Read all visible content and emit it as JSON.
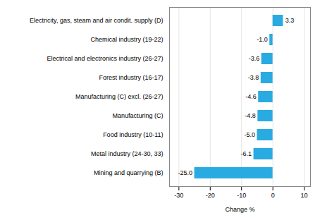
{
  "chart_data": {
    "type": "bar",
    "orientation": "horizontal",
    "categories": [
      "Mining and quarrying (B)",
      "Metal industry (24-30, 33)",
      "Food industry (10-11)",
      "Manufacturing (C)",
      "Manufacturing (C) excl. (26-27)",
      "Forest industry (16-17)",
      "Electrical and electronics industry (26-27)",
      "Chemical industry (19-22)",
      "Electricity, gas, steam and air condit. supply (D)"
    ],
    "values": [
      -25.0,
      -6.1,
      -5.0,
      -4.8,
      -4.6,
      -3.8,
      -3.6,
      -1.0,
      3.3
    ],
    "value_labels": [
      "-25.0",
      "-6.1",
      "-5.0",
      "-4.8",
      "-4.6",
      "-3.8",
      "-3.6",
      "-1.0",
      "3.3"
    ],
    "data_labels": true,
    "color": "#29abe2",
    "xlabel": "Change %",
    "xlim": [
      -33,
      12
    ],
    "xticks": [
      -30,
      -20,
      -10,
      0,
      10
    ],
    "grid": true
  }
}
